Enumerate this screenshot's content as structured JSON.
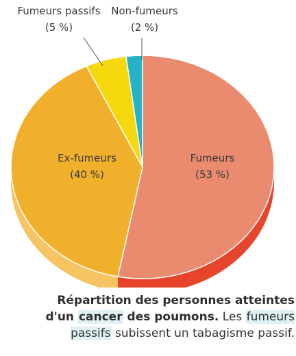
{
  "chart_data": {
    "type": "pie",
    "slices": [
      {
        "name": "Fumeurs",
        "pct_label": "(53 %)",
        "value": 53,
        "color": "#ea8a6e",
        "side_color": "#e6452b"
      },
      {
        "name": "Ex-fumeurs",
        "pct_label": "(40 %)",
        "value": 40,
        "color": "#f1b02c",
        "side_color": "#f6c462"
      },
      {
        "name": "Fumeurs passifs",
        "pct_label": "(5 %)",
        "value": 5,
        "color": "#f6d80f",
        "side_color": "#f3e37a"
      },
      {
        "name": "Non-fumeurs",
        "pct_label": "(2 %)",
        "value": 2,
        "color": "#27b3c7",
        "side_color": "#1a8fa3"
      }
    ]
  },
  "caption": {
    "part1": "Répartition des personnes atteintes d'un ",
    "part2": "cancer",
    "part3": " des poumons.",
    "part4": " Les ",
    "part5": "fumeurs passifs",
    "part6": " subissent un tabagisme passif."
  }
}
